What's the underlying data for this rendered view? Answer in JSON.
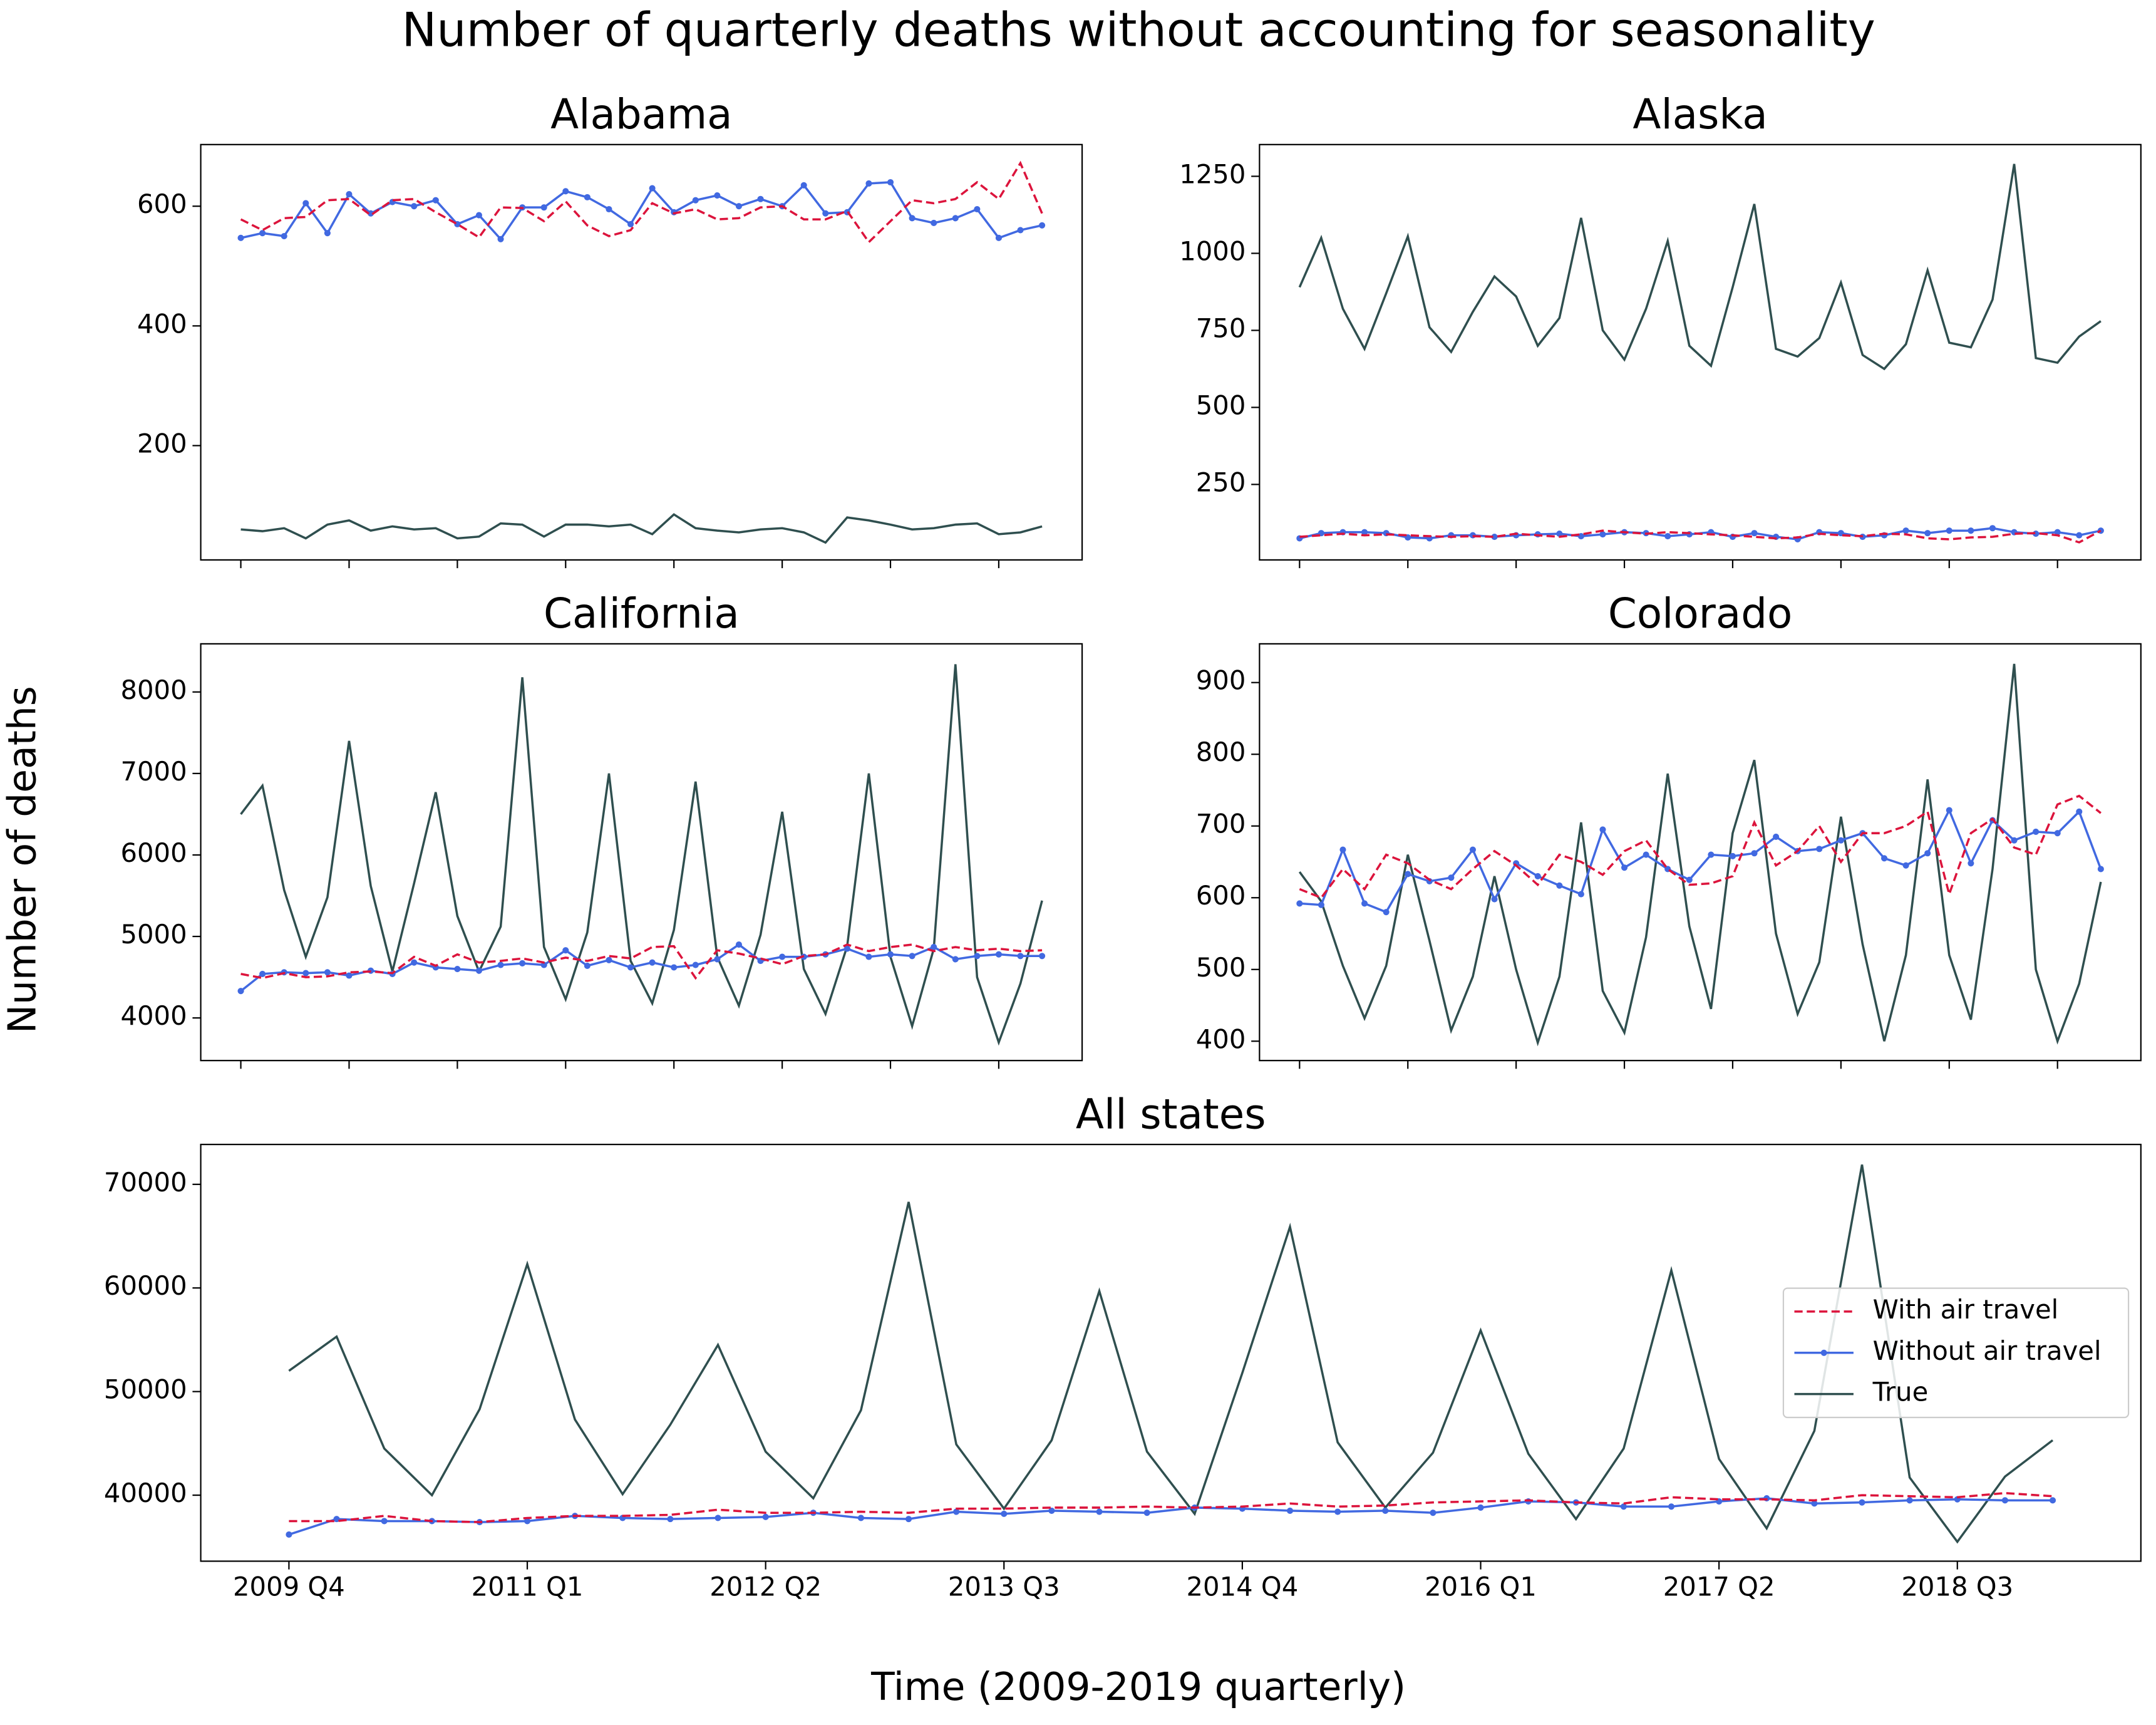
{
  "chart_data": {
    "type": "line",
    "title": "Number of quarterly deaths without accounting for seasonality",
    "xlabel": "Time (2009-2019 quarterly)",
    "ylabel": "Number of deaths",
    "categories": [
      "2009 Q4",
      null,
      null,
      null,
      null,
      "2011 Q1",
      null,
      null,
      null,
      null,
      "2012 Q2",
      null,
      null,
      null,
      null,
      "2013 Q3",
      null,
      null,
      null,
      null,
      "2014 Q4",
      null,
      null,
      null,
      null,
      "2016 Q1",
      null,
      null,
      null,
      null,
      "2017 Q2",
      null,
      null,
      null,
      null,
      "2018 Q3",
      null,
      null
    ],
    "series": [
      {
        "name": "With air travel",
        "color": "#dc143c",
        "dashed": true,
        "markers": false
      },
      {
        "name": "Without air travel",
        "color": "#4169e1",
        "dashed": false,
        "markers": true
      },
      {
        "name": "True",
        "color": "#2f4f4f",
        "dashed": false,
        "markers": false
      }
    ],
    "panels": [
      {
        "title": "Alabama",
        "ylim": [
          9,
          703
        ],
        "yticks": [
          200,
          400,
          600
        ],
        "values": [
          [
            578,
            560,
            580,
            582,
            610,
            612,
            585,
            610,
            612,
            590,
            570,
            548,
            598,
            597,
            575,
            608,
            568,
            550,
            560,
            605,
            588,
            595,
            578,
            580,
            598,
            600,
            578,
            578,
            592,
            540,
            575,
            610,
            605,
            612,
            640,
            612,
            672,
            588
          ],
          [
            547,
            555,
            550,
            605,
            555,
            620,
            588,
            607,
            600,
            610,
            570,
            585,
            545,
            598,
            598,
            625,
            615,
            595,
            570,
            630,
            590,
            610,
            618,
            600,
            612,
            600,
            635,
            588,
            590,
            638,
            640,
            580,
            572,
            580,
            595,
            547,
            560,
            568
          ],
          [
            60,
            57,
            62,
            45,
            68,
            75,
            58,
            65,
            60,
            62,
            45,
            48,
            70,
            68,
            48,
            68,
            68,
            65,
            68,
            52,
            85,
            62,
            58,
            55,
            60,
            62,
            55,
            38,
            80,
            75,
            68,
            60,
            62,
            68,
            70,
            52,
            55,
            65
          ]
        ]
      },
      {
        "title": "Alaska",
        "ylim": [
          5,
          1353
        ],
        "yticks": [
          250,
          500,
          750,
          1000,
          1250
        ],
        "values": [
          [
            80,
            85,
            90,
            85,
            88,
            85,
            82,
            80,
            82,
            80,
            90,
            85,
            80,
            88,
            100,
            95,
            90,
            95,
            92,
            88,
            85,
            80,
            75,
            78,
            90,
            85,
            82,
            90,
            88,
            75,
            72,
            78,
            80,
            90,
            92,
            85,
            62,
            100
          ],
          [
            75,
            92,
            95,
            95,
            92,
            78,
            75,
            85,
            85,
            80,
            85,
            88,
            90,
            82,
            88,
            95,
            92,
            82,
            88,
            95,
            80,
            92,
            80,
            72,
            95,
            92,
            80,
            85,
            100,
            92,
            100,
            100,
            108,
            95,
            90,
            95,
            85,
            100
          ],
          [
            890,
            1050,
            820,
            690,
            870,
            1055,
            760,
            680,
            810,
            925,
            860,
            700,
            790,
            1115,
            750,
            655,
            820,
            1040,
            700,
            635,
            890,
            1160,
            690,
            665,
            725,
            905,
            670,
            625,
            705,
            945,
            710,
            695,
            850,
            1290,
            660,
            645,
            730,
            780
          ]
        ]
      },
      {
        "title": "California",
        "ylim": [
          3477,
          8591
        ],
        "yticks": [
          4000,
          5000,
          6000,
          7000,
          8000
        ],
        "values": [
          [
            4540,
            4490,
            4550,
            4500,
            4510,
            4560,
            4570,
            4550,
            4750,
            4640,
            4780,
            4680,
            4700,
            4730,
            4680,
            4740,
            4700,
            4760,
            4730,
            4870,
            4880,
            4490,
            4830,
            4790,
            4730,
            4660,
            4760,
            4780,
            4900,
            4820,
            4870,
            4900,
            4820,
            4870,
            4830,
            4850,
            4820,
            4830
          ],
          [
            4330,
            4540,
            4560,
            4550,
            4560,
            4520,
            4580,
            4540,
            4680,
            4620,
            4600,
            4580,
            4650,
            4670,
            4650,
            4830,
            4640,
            4710,
            4620,
            4680,
            4620,
            4650,
            4720,
            4900,
            4700,
            4750,
            4750,
            4780,
            4850,
            4750,
            4780,
            4760,
            4870,
            4720,
            4760,
            4780,
            4760,
            4760
          ],
          [
            6500,
            6850,
            5570,
            4750,
            5480,
            7400,
            5620,
            4570,
            5650,
            6770,
            5250,
            4570,
            5120,
            8180,
            4870,
            4230,
            5050,
            7000,
            4700,
            4180,
            5080,
            6900,
            4750,
            4150,
            5020,
            6530,
            4600,
            4050,
            4880,
            7000,
            4750,
            3900,
            4850,
            8340,
            4500,
            3700,
            4420,
            5440
          ]
        ]
      },
      {
        "title": "Colorado",
        "ylim": [
          373,
          954
        ],
        "yticks": [
          400,
          500,
          600,
          700,
          800,
          900
        ],
        "values": [
          [
            612,
            600,
            640,
            612,
            660,
            648,
            625,
            612,
            640,
            665,
            645,
            618,
            660,
            650,
            632,
            665,
            680,
            640,
            618,
            620,
            630,
            705,
            645,
            665,
            700,
            650,
            690,
            690,
            700,
            720,
            605,
            690,
            710,
            670,
            660,
            730,
            742,
            718
          ],
          [
            592,
            590,
            667,
            592,
            580,
            633,
            623,
            628,
            667,
            598,
            648,
            630,
            617,
            605,
            695,
            642,
            660,
            640,
            625,
            660,
            658,
            662,
            685,
            665,
            668,
            680,
            690,
            655,
            645,
            662,
            722,
            648,
            708,
            680,
            692,
            690,
            720,
            640
          ],
          [
            636,
            595,
            505,
            432,
            505,
            660,
            540,
            415,
            490,
            630,
            500,
            398,
            490,
            705,
            470,
            412,
            545,
            773,
            560,
            445,
            690,
            792,
            550,
            438,
            510,
            713,
            535,
            400,
            520,
            765,
            520,
            430,
            640,
            926,
            500,
            400,
            480,
            622
          ]
        ]
      },
      {
        "title": "All states",
        "ylim": [
          33630,
          73850
        ],
        "yticks": [
          40000,
          50000,
          60000,
          70000
        ],
        "legend": "center right",
        "values": [
          [
            37500,
            37500,
            38000,
            37500,
            37400,
            37800,
            38000,
            38000,
            38100,
            38600,
            38300,
            38300,
            38400,
            38300,
            38700,
            38700,
            38800,
            38800,
            38900,
            38800,
            38900,
            39200,
            38900,
            39000,
            39300,
            39400,
            39500,
            39300,
            39200,
            39800,
            39600,
            39600,
            39500,
            40000,
            39900,
            39800,
            40200,
            39900
          ],
          [
            36200,
            37700,
            37500,
            37500,
            37400,
            37500,
            38000,
            37800,
            37700,
            37800,
            37900,
            38300,
            37800,
            37700,
            38400,
            38200,
            38500,
            38400,
            38300,
            38800,
            38700,
            38500,
            38400,
            38500,
            38300,
            38800,
            39400,
            39300,
            38900,
            38900,
            39400,
            39700,
            39200,
            39300,
            39500,
            39600,
            39500,
            39500
          ],
          [
            52000,
            55300,
            44500,
            40000,
            48300,
            62300,
            47300,
            40100,
            46800,
            54500,
            44200,
            39700,
            48200,
            68300,
            44900,
            38700,
            45300,
            59700,
            44200,
            38200,
            51800,
            65900,
            45100,
            38800,
            44100,
            55900,
            44000,
            37700,
            44500,
            61700,
            43500,
            36800,
            46200,
            71900,
            41700,
            35500,
            41800,
            45300
          ]
        ]
      }
    ]
  }
}
